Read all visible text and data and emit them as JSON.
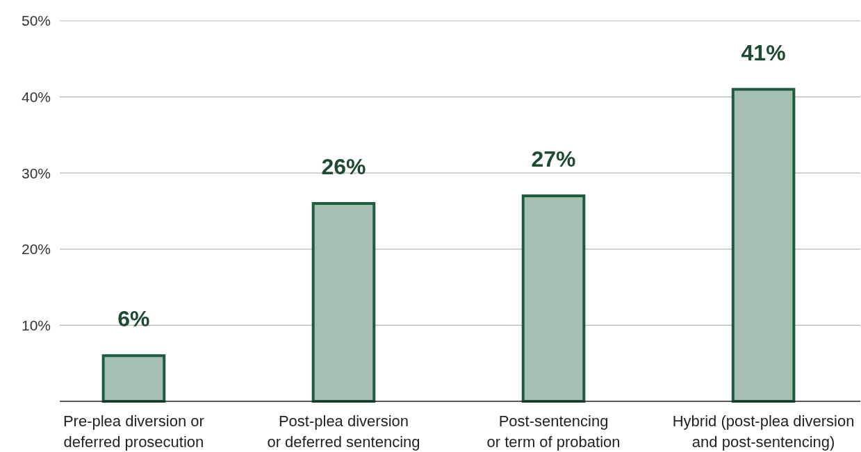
{
  "chart_data": {
    "type": "bar",
    "categories": [
      "Pre-plea diversion or\ndeferred prosecution",
      "Post-plea diversion\nor deferred sentencing",
      "Post-sentencing\nor term of probation",
      "Hybrid (post-plea diversion\nand post-sentencing)"
    ],
    "values": [
      6,
      26,
      27,
      41
    ],
    "value_labels": [
      "6%",
      "26%",
      "27%",
      "41%"
    ],
    "color": "#a5c0b1",
    "ylim": [
      0,
      50
    ],
    "yticks": [
      {
        "value": 10,
        "label": "10%"
      },
      {
        "value": 20,
        "label": "20%"
      },
      {
        "value": 30,
        "label": "30%"
      },
      {
        "value": 40,
        "label": "40%"
      },
      {
        "value": 50,
        "label": "50%"
      }
    ],
    "grid": "y"
  }
}
